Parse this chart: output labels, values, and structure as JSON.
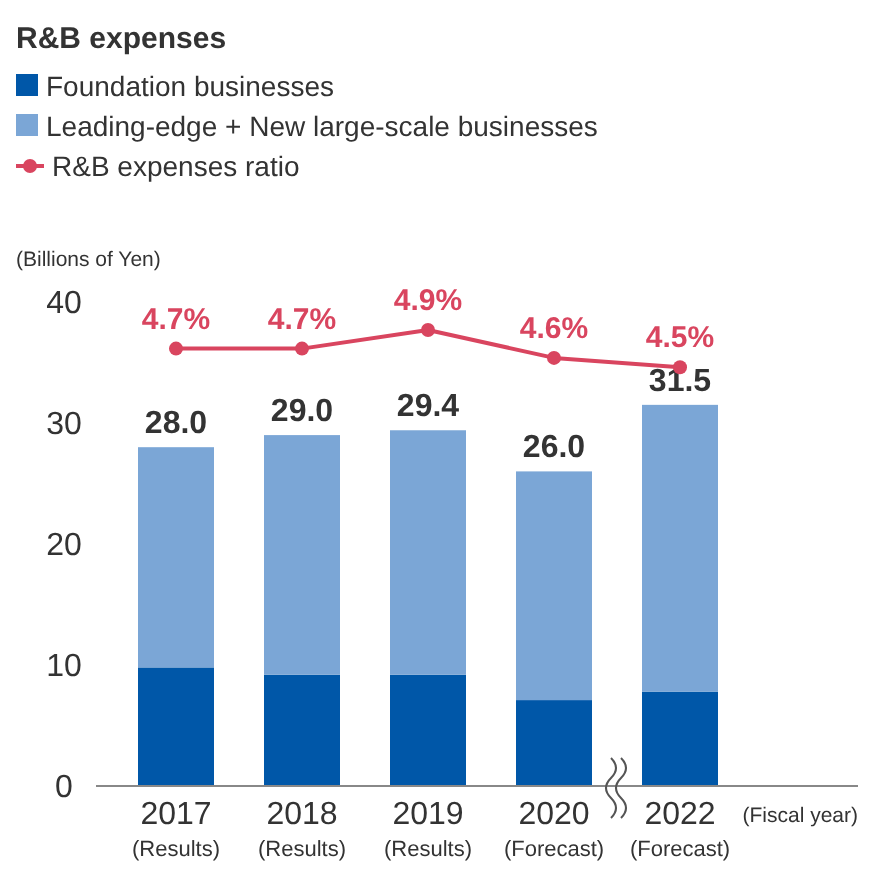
{
  "chart_data": {
    "type": "bar",
    "title": "R&B expenses",
    "ylabel": "(Billions of Yen)",
    "xlabel": "(Fiscal year)",
    "categories": [
      "2017\n(Results)",
      "2018\n(Results)",
      "2019\n(Results)",
      "2020\n(Forecast)",
      "2022\n(Forecast)"
    ],
    "stacked": true,
    "legend": "top",
    "ylim": [
      0,
      40
    ],
    "yticks": [
      0,
      10,
      20,
      30,
      40
    ],
    "totals": [
      "28.0",
      "29.0",
      "29.4",
      "26.0",
      "31.5"
    ],
    "series": [
      {
        "name": "Foundation businesses",
        "color": "#0057a8",
        "values": [
          9.8,
          9.2,
          9.2,
          7.1,
          7.8
        ]
      },
      {
        "name": "Leading-edge + New large-scale businesses",
        "color": "#7ba6d6",
        "values": [
          18.2,
          19.8,
          20.2,
          18.9,
          23.7
        ]
      },
      {
        "name": "R&B expenses ratio",
        "type": "line",
        "axis": "y2",
        "color": "#d9455f",
        "marker": "circle",
        "values": [
          4.7,
          4.7,
          4.9,
          4.6,
          4.5
        ],
        "value_labels": [
          "4.7%",
          "4.7%",
          "4.9%",
          "4.6%",
          "4.5%"
        ]
      }
    ]
  }
}
